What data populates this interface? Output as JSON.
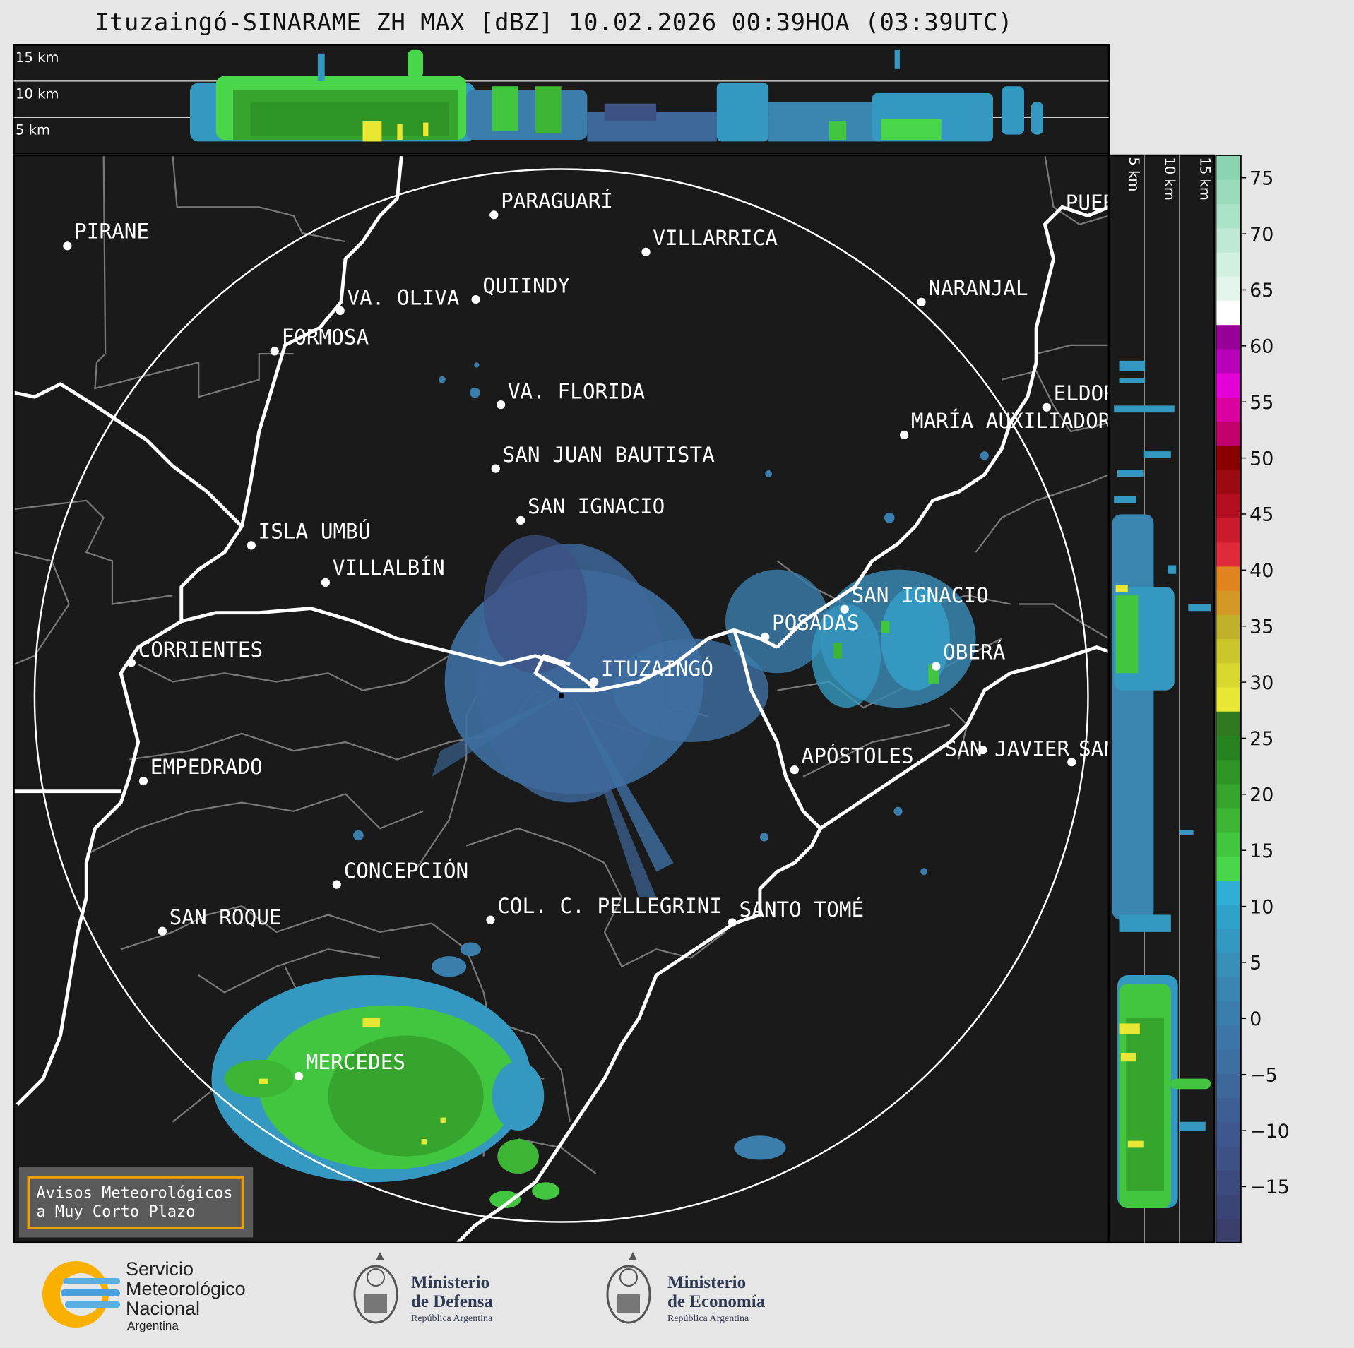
{
  "title": "Ituzaingó-SINARAME ZH MAX [dBZ] 10.02.2026 00:39HOA (03:39UTC)",
  "top_panel": {
    "altitude_labels": [
      "15 km",
      "10 km",
      "5 km"
    ]
  },
  "right_panel": {
    "altitude_labels": [
      "5 km",
      "10 km",
      "15 km"
    ]
  },
  "colorbar": {
    "unit": "dBZ",
    "tick_labels": [
      "75",
      "70",
      "65",
      "60",
      "55",
      "50",
      "45",
      "40",
      "35",
      "30",
      "25",
      "20",
      "15",
      "10",
      "5",
      "0",
      "−5",
      "−10",
      "−15"
    ],
    "tick_values": [
      75,
      70,
      65,
      60,
      55,
      50,
      45,
      40,
      35,
      30,
      25,
      20,
      15,
      10,
      5,
      0,
      -5,
      -10,
      -15
    ],
    "range": [
      -20,
      77
    ],
    "colors_low_to_high": [
      "#3a3f6c",
      "#3b4575",
      "#3c4a7e",
      "#3d5185",
      "#3e588d",
      "#3e5f94",
      "#3e679a",
      "#3e6fa1",
      "#3d76a6",
      "#3b7eac",
      "#3a86b1",
      "#3890b8",
      "#3498c0",
      "#2ea2c8",
      "#30aed6",
      "#4ad64a",
      "#43c63f",
      "#3cb535",
      "#35a52d",
      "#2e9426",
      "#27831f",
      "#2f7a21",
      "#e8e834",
      "#d9d82f",
      "#cbc72b",
      "#c0b02a",
      "#d39825",
      "#df841f",
      "#e02a3c",
      "#cc1a2d",
      "#b30d20",
      "#9b0a13",
      "#8a0000",
      "#c2006a",
      "#db00a0",
      "#e400d6",
      "#b700b7",
      "#960096",
      "#ffffff",
      "#e4f6ec",
      "#d2f0e0",
      "#bfe9d4",
      "#abe3c8",
      "#99dbbb",
      "#8ad4b0"
    ]
  },
  "cities": [
    {
      "name": "PIRANE"
    },
    {
      "name": "PARAGUARÍ"
    },
    {
      "name": "VILLARRICA"
    },
    {
      "name": "QUIINDY"
    },
    {
      "name": "VA. OLIVA"
    },
    {
      "name": "NARANJAL"
    },
    {
      "name": "FORMOSA"
    },
    {
      "name": "VA. FLORIDA"
    },
    {
      "name": "ELDOR"
    },
    {
      "name": "MARÍA AUXILIADOR"
    },
    {
      "name": "SAN JUAN BAUTISTA"
    },
    {
      "name": "SAN IGNACIO"
    },
    {
      "name": "ISLA UMBÚ"
    },
    {
      "name": "VILLALBÍN"
    },
    {
      "name": "SAN IGNACIO"
    },
    {
      "name": "POSADAS"
    },
    {
      "name": "CORRIENTES"
    },
    {
      "name": "ITUZAINGÓ"
    },
    {
      "name": "OBERÁ"
    },
    {
      "name": "APÓSTOLES"
    },
    {
      "name": "SAN JAVIER"
    },
    {
      "name": "SAN"
    },
    {
      "name": "EMPEDRADO"
    },
    {
      "name": "CONCEPCIÓN"
    },
    {
      "name": "COL. C. PELLEGRINI"
    },
    {
      "name": "SANTO TOMÉ"
    },
    {
      "name": "SAN ROQUE"
    },
    {
      "name": "MERCEDES"
    },
    {
      "name": "PUER"
    }
  ],
  "warning_box": {
    "line1": "Avisos Meteorológicos",
    "line2": "a Muy Corto Plazo",
    "border_color": "#f0a000"
  },
  "logos": {
    "smn": {
      "line1": "Servicio",
      "line2": "Meteorológico",
      "line3": "Nacional",
      "line4": "Argentina"
    },
    "defensa": {
      "line1": "Ministerio",
      "line2": "de Defensa",
      "line3": "República Argentina"
    },
    "economia": {
      "line1": "Ministerio",
      "line2": "de Economía",
      "line3": "República Argentina"
    }
  }
}
